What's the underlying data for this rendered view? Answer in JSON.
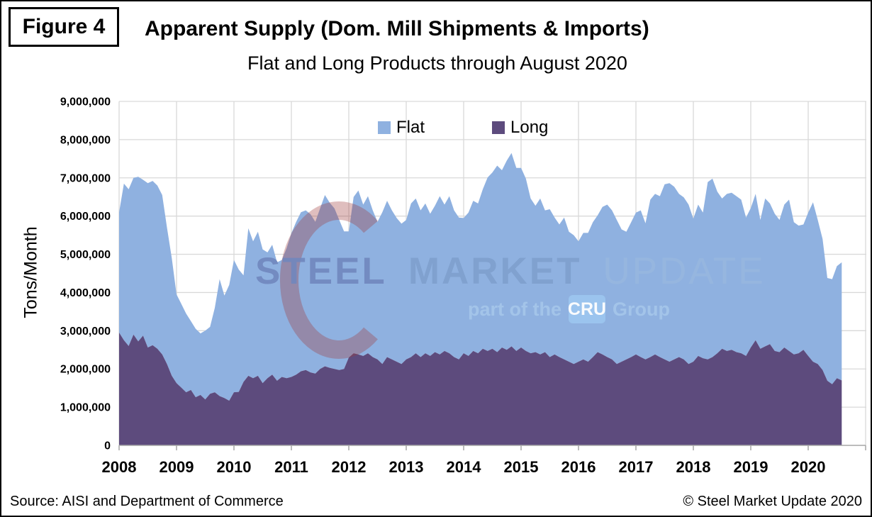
{
  "figure_label": "Figure 4",
  "title": "Apparent Supply (Dom. Mill Shipments & Imports)",
  "subtitle": "Flat and Long Products through August 2020",
  "y_axis_title": "Tons/Month",
  "legend": {
    "flat_label": "Flat",
    "long_label": "Long"
  },
  "footer": {
    "source": "Source: AISI and Department of Commerce",
    "copyright": "© Steel Market Update 2020"
  },
  "watermark": {
    "line1": [
      "STEEL",
      "MARKET",
      "UPDATE"
    ],
    "line2_prefix": "part of the",
    "line2_badge": "CRU",
    "line2_suffix": "Group"
  },
  "colors": {
    "flat": "#8FB1E0",
    "long": "#5D4B7D",
    "gridline": "#D9D9D9",
    "axis": "#A6A6A6",
    "tick_label": "#000000",
    "watermark_crescent": "rgba(158,59,59,0.33)",
    "watermark_steel": "#7187BE",
    "watermark_market": "#7FA0CE",
    "watermark_update": "#97B7DF",
    "watermark_light": "#A5C6EA",
    "cru_badge_bg": "#9CC6EF",
    "cru_badge_text": "#FFFFFF"
  },
  "chart_data": {
    "type": "area",
    "stacked": true,
    "title": "Apparent Supply (Dom. Mill Shipments & Imports)",
    "subtitle": "Flat and Long Products through August 2020",
    "xlabel": "",
    "ylabel": "Tons/Month",
    "ylim": [
      0,
      9000000
    ],
    "y_tick_interval": 1000000,
    "grid": true,
    "legend_position": "top-center-inside",
    "x_range": "monthly, January 2008 through August 2020",
    "x_tick_labels": [
      "2008",
      "2009",
      "2010",
      "2011",
      "2012",
      "2013",
      "2014",
      "2015",
      "2016",
      "2017",
      "2018",
      "2019",
      "2020"
    ],
    "unit_scale": 1000000,
    "series": [
      {
        "name": "Long",
        "color": "#5D4B7D",
        "values_millions": [
          2.95,
          2.75,
          2.6,
          2.9,
          2.72,
          2.87,
          2.56,
          2.62,
          2.53,
          2.38,
          2.13,
          1.82,
          1.63,
          1.51,
          1.39,
          1.45,
          1.26,
          1.32,
          1.2,
          1.35,
          1.39,
          1.29,
          1.24,
          1.17,
          1.39,
          1.4,
          1.66,
          1.82,
          1.76,
          1.82,
          1.63,
          1.76,
          1.85,
          1.69,
          1.79,
          1.76,
          1.79,
          1.85,
          1.94,
          1.97,
          1.91,
          1.88,
          2.0,
          2.07,
          2.03,
          2.0,
          1.97,
          2.0,
          2.3,
          2.41,
          2.38,
          2.34,
          2.41,
          2.31,
          2.25,
          2.13,
          2.31,
          2.25,
          2.19,
          2.13,
          2.25,
          2.31,
          2.41,
          2.31,
          2.41,
          2.34,
          2.44,
          2.38,
          2.47,
          2.41,
          2.31,
          2.25,
          2.41,
          2.34,
          2.47,
          2.41,
          2.53,
          2.47,
          2.53,
          2.44,
          2.56,
          2.5,
          2.59,
          2.47,
          2.56,
          2.47,
          2.41,
          2.44,
          2.38,
          2.44,
          2.31,
          2.38,
          2.31,
          2.25,
          2.19,
          2.13,
          2.19,
          2.25,
          2.19,
          2.31,
          2.44,
          2.38,
          2.31,
          2.25,
          2.13,
          2.19,
          2.25,
          2.31,
          2.38,
          2.31,
          2.25,
          2.31,
          2.38,
          2.31,
          2.25,
          2.19,
          2.25,
          2.31,
          2.25,
          2.13,
          2.19,
          2.34,
          2.28,
          2.25,
          2.31,
          2.41,
          2.53,
          2.47,
          2.5,
          2.44,
          2.41,
          2.34,
          2.56,
          2.75,
          2.53,
          2.59,
          2.65,
          2.47,
          2.44,
          2.56,
          2.47,
          2.38,
          2.41,
          2.5,
          2.34,
          2.19,
          2.13,
          1.97,
          1.69,
          1.6,
          1.76,
          1.7
        ]
      },
      {
        "name": "Flat",
        "color": "#8FB1E0",
        "values_millions": [
          3.15,
          4.1,
          4.1,
          4.1,
          4.31,
          4.08,
          4.3,
          4.3,
          4.27,
          4.17,
          3.57,
          3.08,
          2.32,
          2.19,
          2.06,
          1.8,
          1.79,
          1.61,
          1.8,
          1.75,
          2.21,
          3.06,
          2.68,
          3.03,
          3.46,
          3.2,
          2.79,
          3.86,
          3.58,
          3.77,
          3.5,
          3.29,
          3.4,
          3.1,
          3.06,
          3.4,
          3.76,
          4.0,
          4.16,
          4.18,
          4.14,
          3.97,
          4.2,
          4.48,
          4.32,
          4.2,
          3.93,
          3.6,
          3.3,
          4.09,
          4.29,
          3.96,
          4.11,
          3.84,
          3.6,
          3.97,
          4.09,
          3.9,
          3.76,
          3.67,
          3.65,
          4.02,
          4.05,
          3.84,
          3.92,
          3.72,
          3.83,
          4.14,
          3.83,
          4.11,
          3.84,
          3.71,
          3.54,
          3.75,
          3.93,
          3.92,
          4.17,
          4.54,
          4.61,
          4.88,
          4.64,
          4.95,
          5.06,
          4.79,
          4.7,
          4.51,
          4.05,
          3.83,
          4.08,
          3.71,
          3.87,
          3.58,
          3.47,
          3.71,
          3.4,
          3.37,
          3.15,
          3.31,
          3.37,
          3.53,
          3.58,
          3.86,
          3.99,
          3.9,
          3.77,
          3.46,
          3.34,
          3.53,
          3.71,
          3.84,
          3.56,
          4.12,
          4.2,
          4.21,
          4.58,
          4.67,
          4.52,
          4.27,
          4.24,
          4.17,
          3.74,
          3.96,
          3.81,
          4.64,
          4.67,
          4.23,
          3.93,
          4.11,
          4.11,
          4.08,
          4.02,
          3.62,
          3.65,
          3.83,
          3.37,
          3.87,
          3.68,
          3.59,
          3.46,
          3.74,
          3.96,
          3.46,
          3.34,
          3.28,
          3.75,
          4.17,
          3.77,
          3.43,
          2.69,
          2.75,
          2.93,
          3.09
        ]
      }
    ]
  }
}
